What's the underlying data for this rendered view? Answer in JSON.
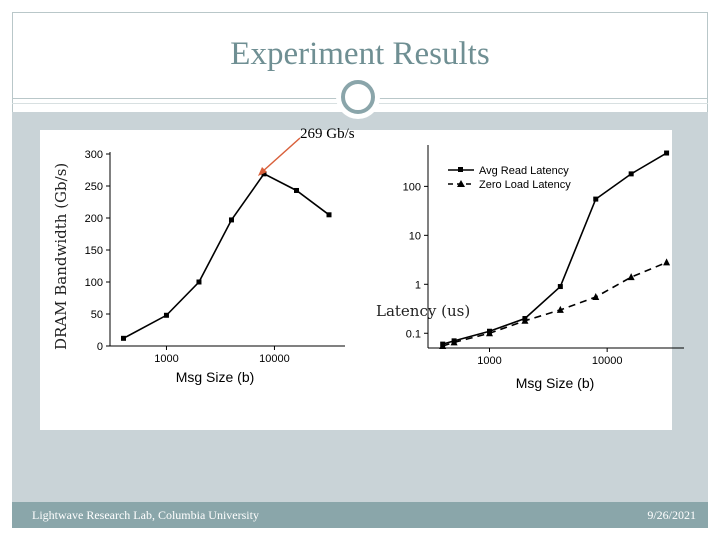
{
  "slide": {
    "title": "Experiment Results",
    "annotation": "269 Gb/s",
    "footer_left": "Lightwave Research Lab, Columbia University",
    "footer_right": "9/26/2021",
    "colors": {
      "accent": "#8aa6aa",
      "title": "#6f8f93",
      "panel": "#c9d3d7",
      "annotation_arrow": "#d9603b"
    }
  },
  "chart_data": [
    {
      "type": "line",
      "x": [
        400,
        1000,
        2000,
        4000,
        8000,
        16000,
        32000
      ],
      "values": [
        12,
        48,
        100,
        197,
        269,
        243,
        205
      ],
      "xlabel": "Msg Size (b)",
      "ylabel": "DRAM Bandwidth (Gb/s)",
      "xscale": "log",
      "xticks": [
        "1000",
        "10000"
      ],
      "yticks": [
        "0",
        "50",
        "100",
        "150",
        "200",
        "250",
        "300"
      ],
      "ylim": [
        0,
        300
      ]
    },
    {
      "type": "line",
      "x": [
        400,
        500,
        1000,
        2000,
        4000,
        8000,
        16000,
        32000
      ],
      "series": [
        {
          "name": "Avg Read Latency",
          "values": [
            0.06,
            0.07,
            0.11,
            0.2,
            0.9,
            55,
            180,
            480
          ],
          "marker": "square",
          "style": "solid"
        },
        {
          "name": "Zero Load Latency",
          "values": [
            0.055,
            0.065,
            0.1,
            0.18,
            0.3,
            0.55,
            1.4,
            2.8
          ],
          "marker": "triangle",
          "style": "dashed"
        }
      ],
      "xlabel": "Msg Size (b)",
      "ylabel": "Latency (us)",
      "xscale": "log",
      "yscale": "log",
      "xticks": [
        "1000",
        "10000"
      ],
      "yticks": [
        "0.1",
        "1",
        "10",
        "100"
      ],
      "legend": "top-left"
    }
  ]
}
